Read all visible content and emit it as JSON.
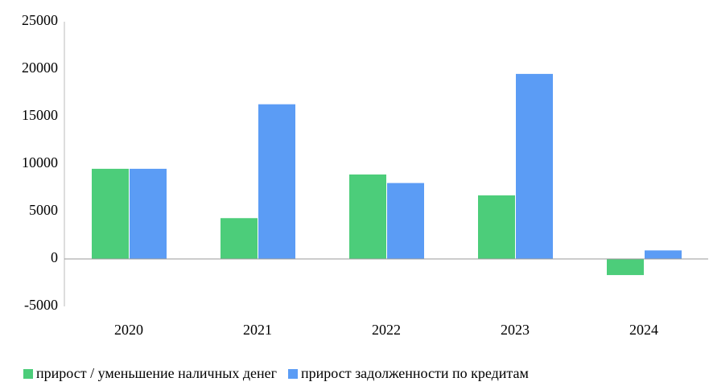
{
  "chart_data": {
    "type": "bar",
    "categories": [
      "2020",
      "2021",
      "2022",
      "2023",
      "2024"
    ],
    "series": [
      {
        "name": "прирост / уменьшение наличных денег",
        "color": "#4ccd7a",
        "values": [
          9500,
          4300,
          8900,
          6700,
          -1700
        ]
      },
      {
        "name": "прирост задолженности по кредитам",
        "color": "#5b9cf5",
        "values": [
          9500,
          16300,
          8000,
          19500,
          900
        ]
      }
    ],
    "ylim": [
      -5000,
      25000
    ],
    "yticks": [
      -5000,
      0,
      5000,
      10000,
      15000,
      20000,
      25000
    ],
    "grid": false,
    "legend": "bottom"
  }
}
